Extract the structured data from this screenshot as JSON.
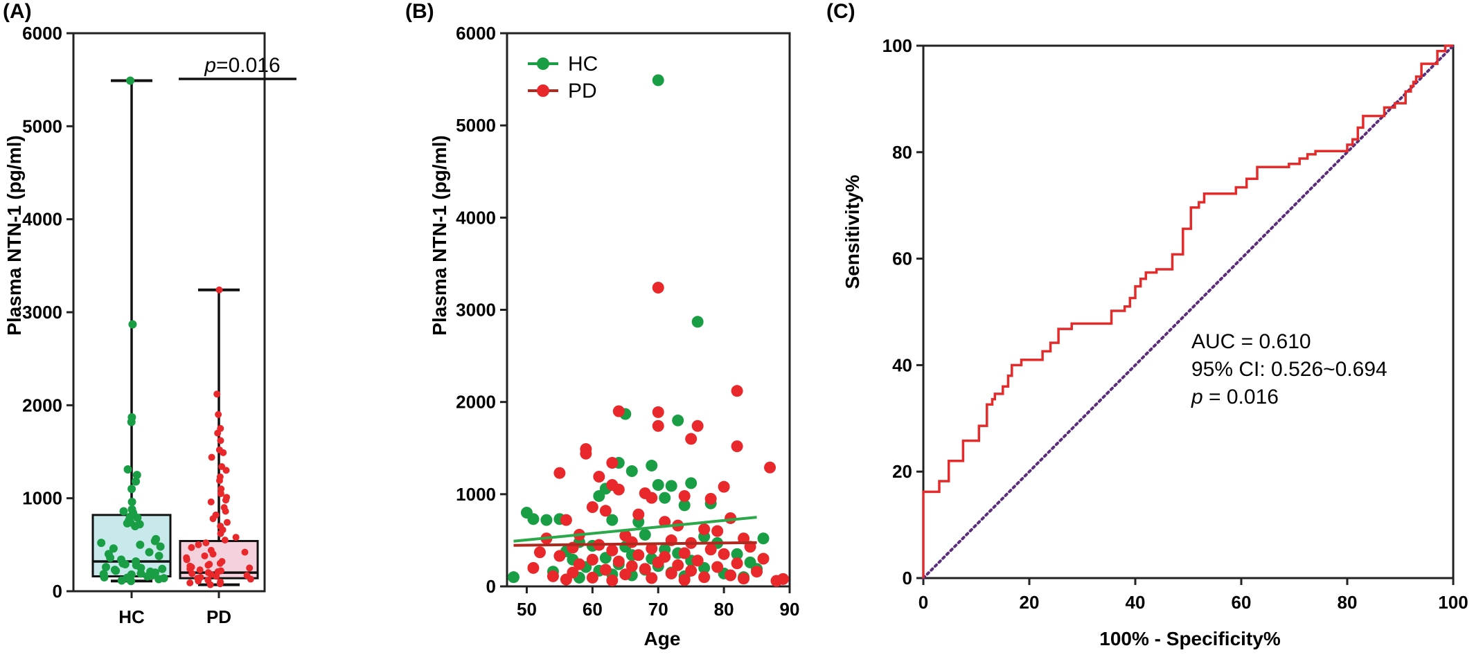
{
  "panel_labels": [
    "(A)",
    "(B)",
    "(C)"
  ],
  "colors": {
    "hc": "#1a9e45",
    "pd": "#e8282b",
    "hc_box": "#c8e9ec",
    "pd_box": "#f3d2de",
    "roc": "#e32b2b",
    "diagonal": "#5b2d7a",
    "hc_fit": "#2aa84a",
    "pd_fit": "#b0291f"
  },
  "chart_data": [
    {
      "panel": "(A)",
      "type": "box",
      "categories": [
        "HC",
        "PD"
      ],
      "ylabel": "Plasma NTN-1 (pg/ml)",
      "xlabel": "",
      "ylim": [
        0,
        6000
      ],
      "yticks": [
        "0",
        "1000",
        "2000",
        "3000",
        "4000",
        "5000",
        "6000"
      ],
      "significance": {
        "prefix": "p",
        "text": "=0.016"
      },
      "boxes": [
        {
          "name": "HC",
          "min": 110,
          "q1": 160,
          "median": 320,
          "q3": 820,
          "max": 5490
        },
        {
          "name": "PD",
          "min": 70,
          "q1": 140,
          "median": 200,
          "q3": 540,
          "max": 3240
        }
      ],
      "points": {
        "HC": [
          5490,
          2870,
          1870,
          1820,
          1310,
          1250,
          1180,
          1100,
          960,
          880,
          860,
          840,
          820,
          800,
          790,
          760,
          740,
          730,
          720,
          700,
          560,
          540,
          520,
          500,
          480,
          460,
          420,
          400,
          380,
          360,
          340,
          320,
          300,
          290,
          280,
          260,
          250,
          240,
          230,
          220,
          210,
          200,
          190,
          185,
          180,
          170,
          160,
          150,
          145,
          140,
          130,
          120,
          115,
          110
        ],
        "PD": [
          3240,
          2120,
          1900,
          1750,
          1700,
          1620,
          1520,
          1490,
          1440,
          1340,
          1300,
          1230,
          1190,
          1100,
          1050,
          1010,
          980,
          960,
          900,
          860,
          820,
          780,
          740,
          700,
          660,
          620,
          580,
          550,
          520,
          500,
          470,
          440,
          420,
          400,
          380,
          360,
          340,
          320,
          300,
          290,
          280,
          270,
          260,
          250,
          240,
          230,
          220,
          210,
          200,
          190,
          180,
          170,
          160,
          150,
          140,
          130,
          120,
          110,
          100,
          90,
          80,
          70
        ]
      }
    },
    {
      "panel": "(B)",
      "type": "scatter",
      "xlabel": "Age",
      "ylabel": "Plasma NTN-1 (pg/ml)",
      "xlim": [
        47,
        90
      ],
      "ylim": [
        0,
        6000
      ],
      "xticks": [
        "50",
        "60",
        "70",
        "80",
        "90"
      ],
      "yticks": [
        "0",
        "1000",
        "2000",
        "3000",
        "4000",
        "5000",
        "6000"
      ],
      "legend": {
        "position": "top-left"
      },
      "series": [
        {
          "name": "HC",
          "points": [
            [
              70,
              5490
            ],
            [
              76,
              2870
            ],
            [
              65,
              1870
            ],
            [
              73,
              1800
            ],
            [
              64,
              1340
            ],
            [
              69,
              1310
            ],
            [
              66,
              1250
            ],
            [
              75,
              1120
            ],
            [
              70,
              1100
            ],
            [
              72,
              1090
            ],
            [
              62,
              1060
            ],
            [
              61,
              980
            ],
            [
              71,
              960
            ],
            [
              78,
              900
            ],
            [
              74,
              880
            ],
            [
              50,
              800
            ],
            [
              51,
              730
            ],
            [
              55,
              730
            ],
            [
              53,
              720
            ],
            [
              63,
              720
            ],
            [
              67,
              700
            ],
            [
              68,
              560
            ],
            [
              77,
              540
            ],
            [
              86,
              520
            ],
            [
              58,
              480
            ],
            [
              79,
              470
            ],
            [
              60,
              440
            ],
            [
              65,
              430
            ],
            [
              71,
              400
            ],
            [
              56,
              380
            ],
            [
              73,
              360
            ],
            [
              82,
              350
            ],
            [
              66,
              340
            ],
            [
              62,
              310
            ],
            [
              69,
              300
            ],
            [
              57,
              290
            ],
            [
              75,
              280
            ],
            [
              84,
              260
            ],
            [
              64,
              240
            ],
            [
              70,
              220
            ],
            [
              59,
              210
            ],
            [
              77,
              200
            ],
            [
              85,
              190
            ],
            [
              68,
              180
            ],
            [
              61,
              170
            ],
            [
              54,
              160
            ],
            [
              72,
              150
            ],
            [
              80,
              140
            ],
            [
              63,
              130
            ],
            [
              66,
              120
            ],
            [
              74,
              110
            ],
            [
              48,
              100
            ],
            [
              83,
              100
            ],
            [
              58,
              95
            ]
          ]
        },
        {
          "name": "PD",
          "points": [
            [
              70,
              3240
            ],
            [
              82,
              2120
            ],
            [
              64,
              1900
            ],
            [
              70,
              1890
            ],
            [
              76,
              1740
            ],
            [
              70,
              1740
            ],
            [
              75,
              1600
            ],
            [
              82,
              1520
            ],
            [
              59,
              1490
            ],
            [
              59,
              1440
            ],
            [
              63,
              1340
            ],
            [
              87,
              1290
            ],
            [
              55,
              1230
            ],
            [
              61,
              1190
            ],
            [
              63,
              1100
            ],
            [
              64,
              1050
            ],
            [
              68,
              1010
            ],
            [
              74,
              980
            ],
            [
              69,
              960
            ],
            [
              78,
              950
            ],
            [
              60,
              860
            ],
            [
              80,
              1080
            ],
            [
              62,
              820
            ],
            [
              67,
              780
            ],
            [
              81,
              740
            ],
            [
              56,
              720
            ],
            [
              71,
              700
            ],
            [
              73,
              660
            ],
            [
              77,
              620
            ],
            [
              79,
              600
            ],
            [
              58,
              560
            ],
            [
              65,
              550
            ],
            [
              83,
              520
            ],
            [
              53,
              520
            ],
            [
              72,
              500
            ],
            [
              66,
              480
            ],
            [
              75,
              470
            ],
            [
              61,
              450
            ],
            [
              84,
              430
            ],
            [
              57,
              420
            ],
            [
              69,
              410
            ],
            [
              78,
              400
            ],
            [
              63,
              390
            ],
            [
              52,
              370
            ],
            [
              74,
              360
            ],
            [
              80,
              350
            ],
            [
              67,
              340
            ],
            [
              55,
              330
            ],
            [
              71,
              320
            ],
            [
              86,
              300
            ],
            [
              60,
              290
            ],
            [
              76,
              280
            ],
            [
              64,
              270
            ],
            [
              70,
              260
            ],
            [
              82,
              250
            ],
            [
              58,
              240
            ],
            [
              73,
              230
            ],
            [
              66,
              220
            ],
            [
              79,
              210
            ],
            [
              51,
              200
            ],
            [
              68,
              190
            ],
            [
              62,
              180
            ],
            [
              75,
              170
            ],
            [
              85,
              160
            ],
            [
              57,
              150
            ],
            [
              72,
              140
            ],
            [
              65,
              130
            ],
            [
              81,
              120
            ],
            [
              54,
              110
            ],
            [
              77,
              100
            ],
            [
              60,
              95
            ],
            [
              69,
              90
            ],
            [
              83,
              85
            ],
            [
              89,
              80
            ],
            [
              56,
              75
            ],
            [
              74,
              70
            ],
            [
              63,
              65
            ],
            [
              88,
              60
            ]
          ]
        }
      ],
      "fits": [
        {
          "name": "HC",
          "x": [
            48,
            85
          ],
          "y": [
            490,
            750
          ]
        },
        {
          "name": "PD",
          "x": [
            48,
            85
          ],
          "y": [
            445,
            475
          ]
        }
      ]
    },
    {
      "panel": "(C)",
      "type": "line",
      "xlabel": "100% - Specificity%",
      "ylabel": "Sensitivity%",
      "xlim": [
        0,
        100
      ],
      "ylim": [
        0,
        100
      ],
      "xticks": [
        "0",
        "20",
        "40",
        "60",
        "80",
        "100"
      ],
      "yticks": [
        "0",
        "20",
        "40",
        "60",
        "80",
        "100"
      ],
      "annotations": {
        "auc": "AUC = 0.610",
        "ci": "95% CI: 0.526~0.694",
        "p_prefix": "p",
        "p_text": " = 0.016"
      },
      "series": [
        {
          "name": "ROC",
          "points": [
            [
              0,
              0
            ],
            [
              0,
              16.2
            ],
            [
              3,
              16.2
            ],
            [
              3,
              18.2
            ],
            [
              4.8,
              18.2
            ],
            [
              4.8,
              22
            ],
            [
              7.5,
              22
            ],
            [
              7.5,
              25.8
            ],
            [
              10.5,
              25.8
            ],
            [
              10.5,
              28.6
            ],
            [
              12,
              28.6
            ],
            [
              12,
              32.6
            ],
            [
              13,
              32.6
            ],
            [
              13,
              33.6
            ],
            [
              13.5,
              33.6
            ],
            [
              13.5,
              34.6
            ],
            [
              15,
              34.6
            ],
            [
              15,
              36
            ],
            [
              16,
              36
            ],
            [
              16,
              38
            ],
            [
              16.7,
              38
            ],
            [
              16.7,
              40
            ],
            [
              18.5,
              40
            ],
            [
              18.5,
              41
            ],
            [
              22.5,
              41
            ],
            [
              22.5,
              42.6
            ],
            [
              24,
              42.6
            ],
            [
              24,
              44.2
            ],
            [
              25.5,
              44.2
            ],
            [
              25.5,
              46.8
            ],
            [
              28,
              46.8
            ],
            [
              28,
              47.8
            ],
            [
              35.5,
              47.8
            ],
            [
              35.5,
              50.2
            ],
            [
              38,
              50.2
            ],
            [
              38,
              51
            ],
            [
              39,
              51
            ],
            [
              39,
              52.6
            ],
            [
              40,
              52.6
            ],
            [
              40,
              54.8
            ],
            [
              41,
              54.8
            ],
            [
              41,
              56.2
            ],
            [
              42,
              56.2
            ],
            [
              42,
              57.4
            ],
            [
              44,
              57.4
            ],
            [
              44,
              58
            ],
            [
              47,
              58
            ],
            [
              47,
              60.8
            ],
            [
              49,
              60.8
            ],
            [
              49,
              65.6
            ],
            [
              50.5,
              65.6
            ],
            [
              50.5,
              69.6
            ],
            [
              52,
              69.6
            ],
            [
              52,
              70.6
            ],
            [
              53,
              70.6
            ],
            [
              53,
              72.2
            ],
            [
              59,
              72.2
            ],
            [
              59,
              73.4
            ],
            [
              61,
              73.4
            ],
            [
              61,
              75
            ],
            [
              63,
              75
            ],
            [
              63,
              77.2
            ],
            [
              69,
              77.2
            ],
            [
              69,
              77.8
            ],
            [
              71,
              77.8
            ],
            [
              71,
              78.8
            ],
            [
              72.5,
              78.8
            ],
            [
              72.5,
              79.6
            ],
            [
              74,
              79.6
            ],
            [
              74,
              80.2
            ],
            [
              80,
              80.2
            ],
            [
              80,
              81.4
            ],
            [
              81,
              81.4
            ],
            [
              81,
              82.4
            ],
            [
              82,
              82.4
            ],
            [
              82,
              84.6
            ],
            [
              83,
              84.6
            ],
            [
              83,
              86.8
            ],
            [
              87,
              86.8
            ],
            [
              87,
              88.4
            ],
            [
              89,
              88.4
            ],
            [
              89,
              89.2
            ],
            [
              91,
              89.2
            ],
            [
              91,
              91.4
            ],
            [
              92,
              91.4
            ],
            [
              92,
              92.4
            ],
            [
              92.5,
              92.4
            ],
            [
              92.5,
              93.2
            ],
            [
              93,
              93.2
            ],
            [
              93,
              94.2
            ],
            [
              94,
              94.2
            ],
            [
              94,
              96.6
            ],
            [
              97,
              96.6
            ],
            [
              97,
              99
            ],
            [
              98.5,
              99
            ],
            [
              98.5,
              100
            ],
            [
              100,
              100
            ]
          ]
        },
        {
          "name": "Reference",
          "points": [
            [
              0,
              0
            ],
            [
              100,
              100
            ]
          ]
        }
      ]
    }
  ]
}
